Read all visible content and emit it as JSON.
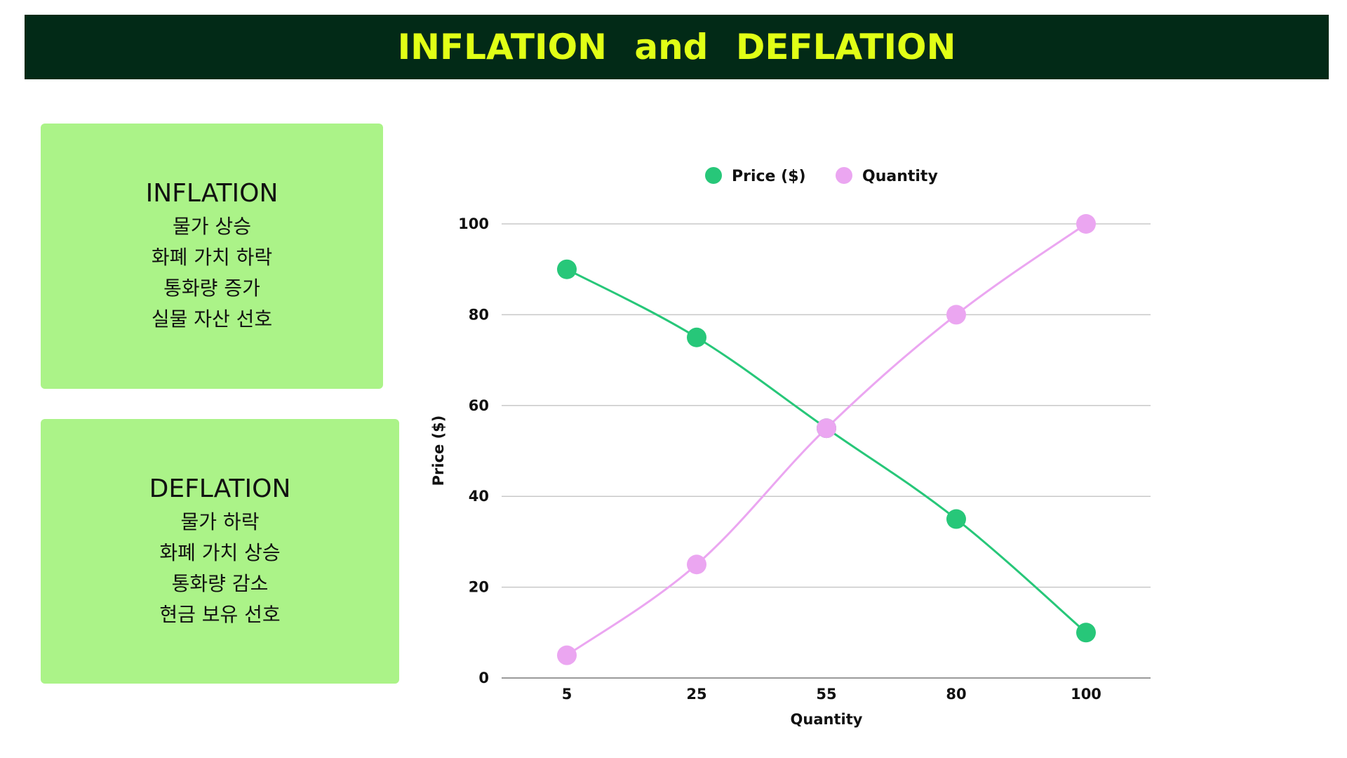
{
  "header": {
    "title": "INFLATION and DEFLATION"
  },
  "inflation_card": {
    "title": "INFLATION",
    "lines": [
      "물가 상승",
      "화폐 가치 하락",
      "통화량 증가",
      "실물 자산 선호"
    ]
  },
  "deflation_card": {
    "title": "DEFLATION",
    "lines": [
      "물가 하락",
      "화폐 가치 상승",
      "통화량 감소",
      "현금 보유 선호"
    ]
  },
  "colors": {
    "header_bg": "#022a17",
    "header_text": "#e1ff16",
    "card_bg": "#abf388",
    "price_series": "#27c779",
    "quantity_series": "#eba6f1",
    "gridline": "#c8c8c8"
  },
  "chart_data": {
    "type": "line",
    "title": "",
    "categories": [
      "5",
      "25",
      "55",
      "80",
      "100"
    ],
    "series": [
      {
        "name": "Price ($)",
        "values": [
          90,
          75,
          55,
          35,
          10
        ]
      },
      {
        "name": "Quantity",
        "values": [
          5,
          25,
          55,
          80,
          100
        ]
      }
    ],
    "xlabel": "Quantity",
    "ylabel": "Price ($)",
    "ylim": [
      0,
      100
    ],
    "yticks": [
      0,
      20,
      40,
      60,
      80,
      100
    ],
    "grid": true,
    "legend": "top-center"
  }
}
